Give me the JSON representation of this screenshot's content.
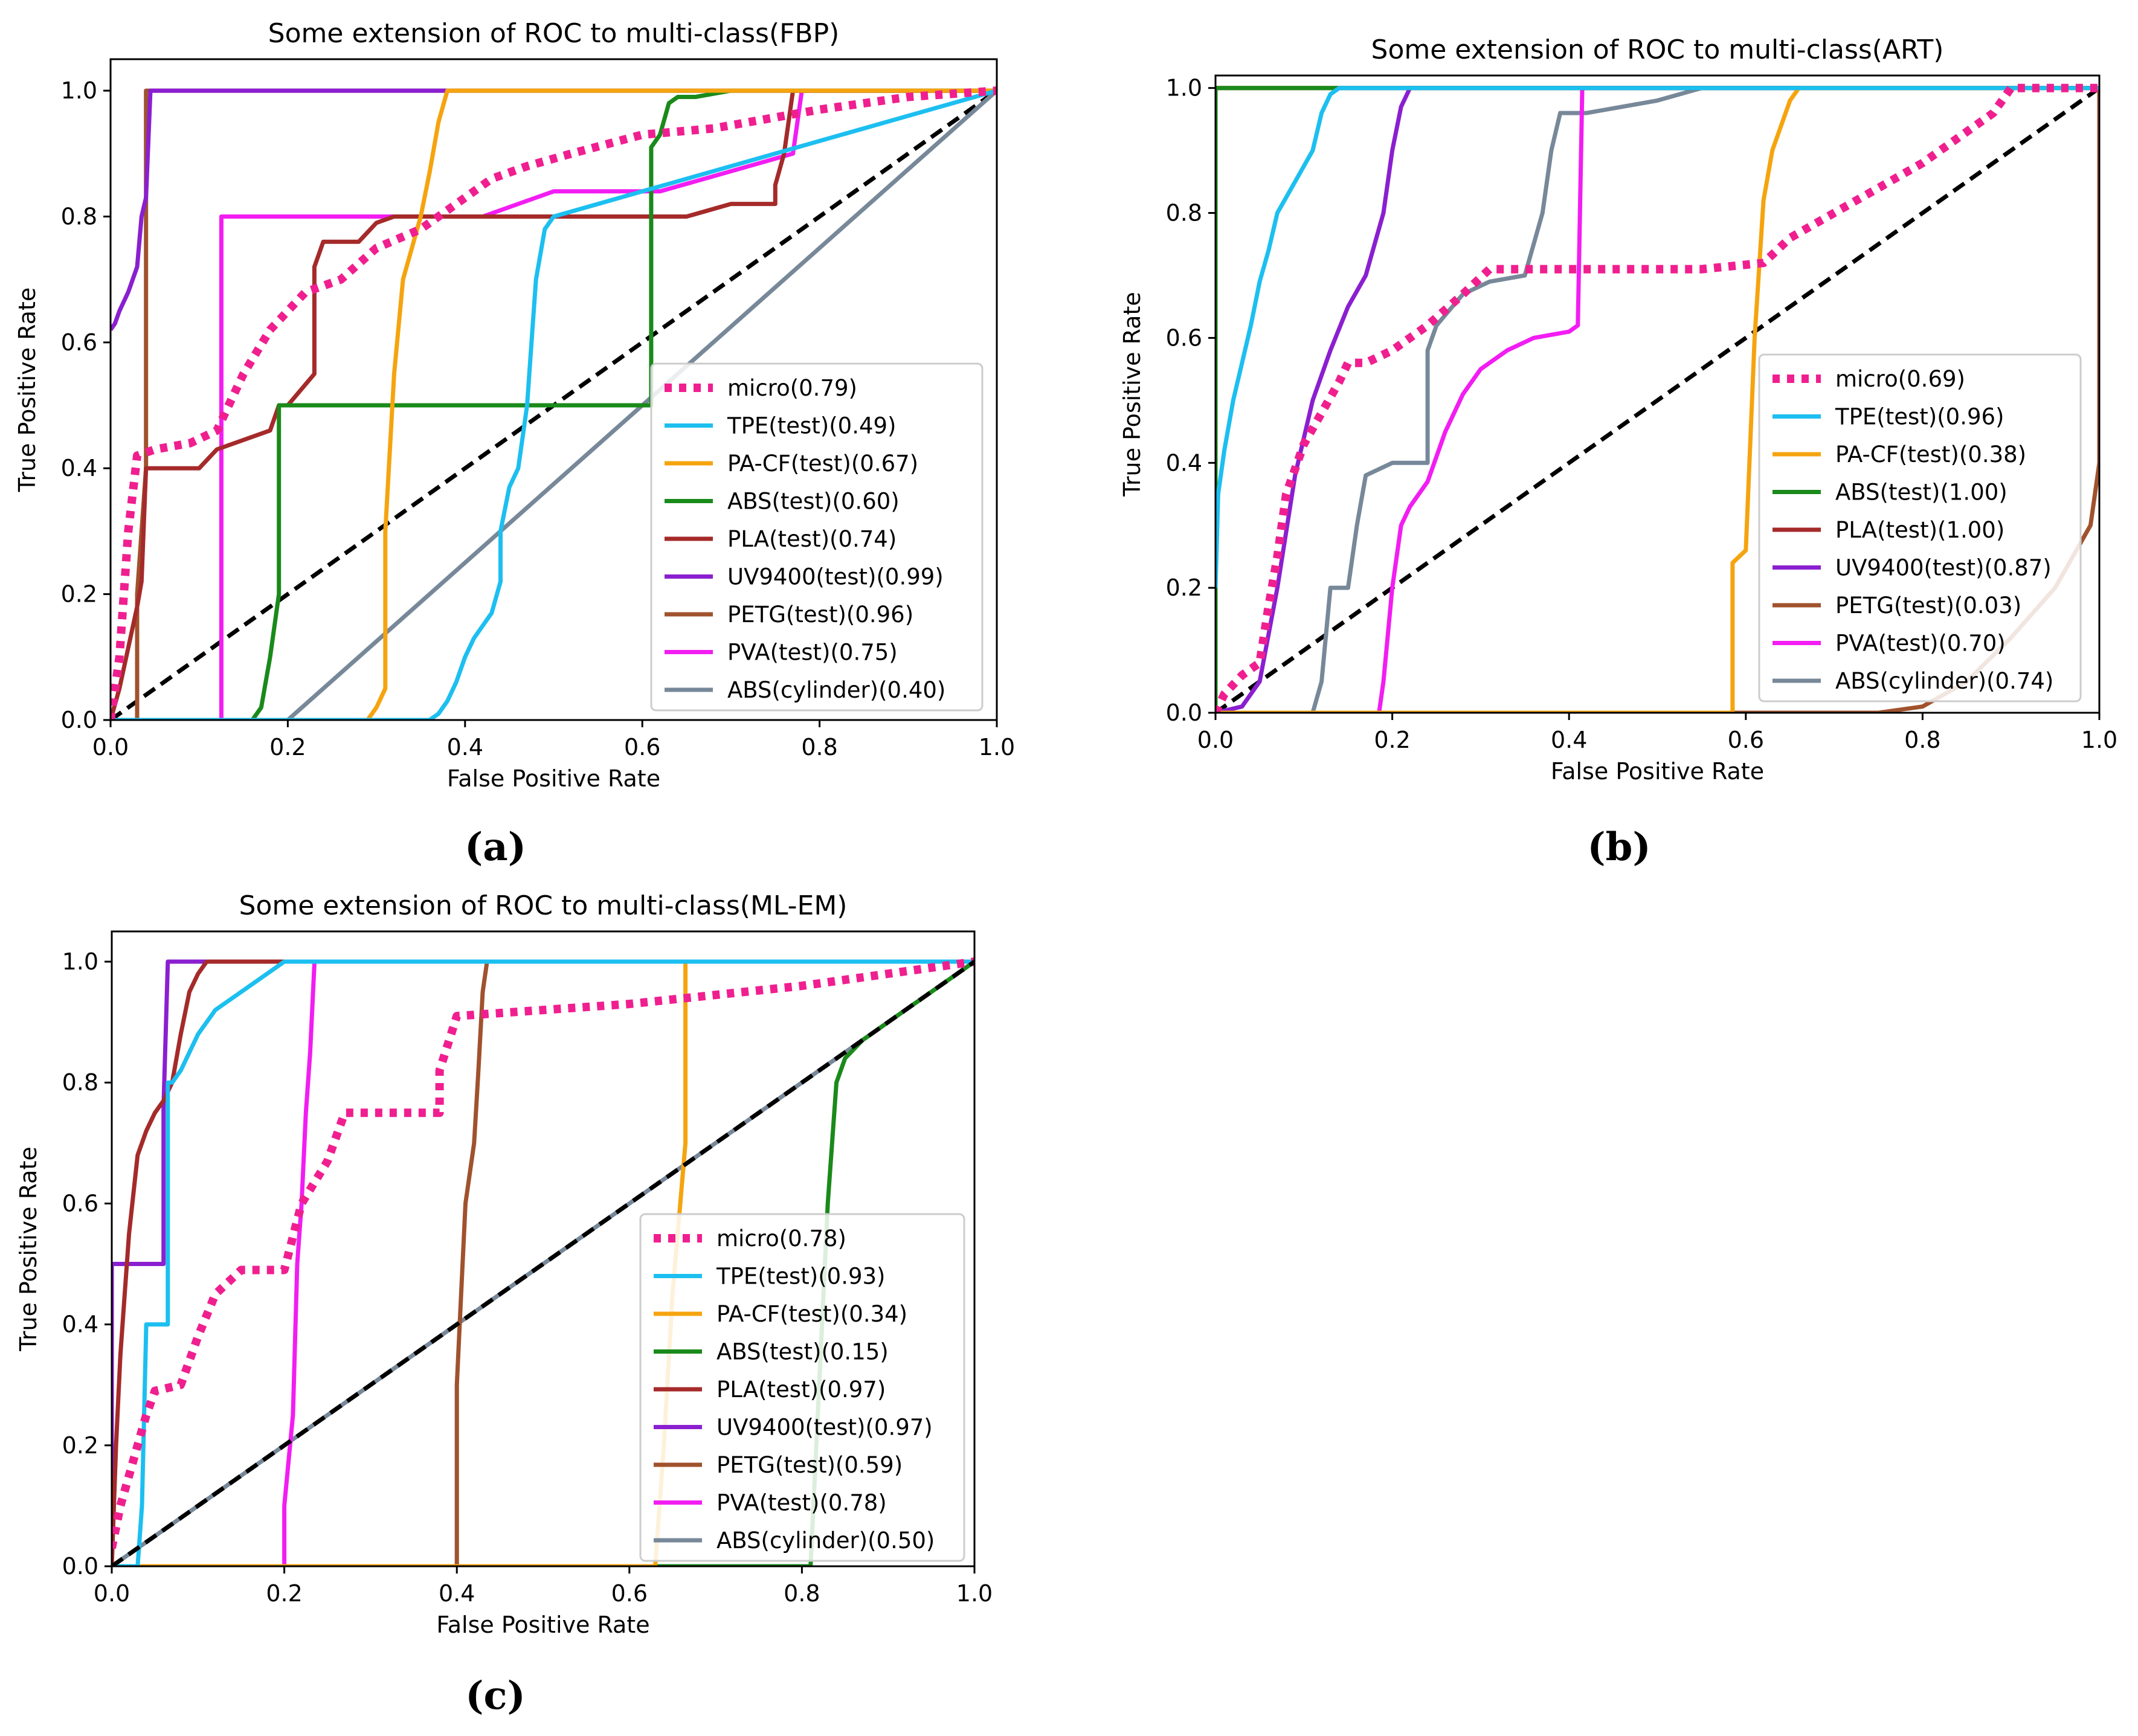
{
  "legend_template": [
    "micro",
    "TPE(test)",
    "PA-CF(test)",
    "ABS(test)",
    "PLA(test)",
    "UV9400(test)",
    "PETG(test)",
    "PVA(test)",
    "ABS(cylinder)"
  ],
  "colors": {
    "micro": "#f01f8f",
    "TPE": "#1cbff0",
    "PACF": "#f5a40f",
    "ABS": "#1a8a1a",
    "PLA": "#a52a2a",
    "UV9400": "#8a1fd0",
    "PETG": "#a0522d",
    "PVA": "#f21df2",
    "ABScyl": "#778899",
    "diag": "#000000"
  },
  "captions": {
    "a": "(a)",
    "b": "(b)",
    "c": "(c)"
  },
  "chart_data": [
    {
      "id": "a",
      "type": "line",
      "title": "Some extension of ROC to multi-class(FBP)",
      "xlabel": "False Positive Rate",
      "ylabel": "True Positive Rate",
      "xlim": [
        0,
        1
      ],
      "ylim": [
        0,
        1.05
      ],
      "xticks": [
        "0.0",
        "0.2",
        "0.4",
        "0.6",
        "0.8",
        "1.0"
      ],
      "yticks": [
        "0.0",
        "0.2",
        "0.4",
        "0.6",
        "0.8",
        "1.0"
      ],
      "legend_position": "center-right",
      "series": [
        {
          "key": "micro",
          "name": "micro(0.79)",
          "dotted": true,
          "x": [
            0,
            0.01,
            0.02,
            0.03,
            0.05,
            0.09,
            0.12,
            0.15,
            0.18,
            0.22,
            0.26,
            0.3,
            0.35,
            0.37,
            0.43,
            0.47,
            0.52,
            0.6,
            0.68,
            0.76,
            0.8,
            0.9,
            1.0
          ],
          "y": [
            0,
            0.1,
            0.3,
            0.42,
            0.43,
            0.44,
            0.46,
            0.55,
            0.62,
            0.68,
            0.7,
            0.75,
            0.78,
            0.8,
            0.86,
            0.88,
            0.9,
            0.93,
            0.94,
            0.96,
            0.97,
            0.99,
            1.0
          ]
        },
        {
          "key": "TPE",
          "name": "TPE(test)(0.49)",
          "x": [
            0,
            0.36,
            0.37,
            0.38,
            0.39,
            0.4,
            0.41,
            0.43,
            0.44,
            0.44,
            0.45,
            0.46,
            0.465,
            0.47,
            0.475,
            0.48,
            0.49,
            0.5,
            0.6,
            0.7,
            0.8,
            0.9,
            1.0
          ],
          "y": [
            0,
            0,
            0.01,
            0.03,
            0.06,
            0.1,
            0.13,
            0.17,
            0.22,
            0.3,
            0.37,
            0.4,
            0.45,
            0.5,
            0.6,
            0.7,
            0.78,
            0.8,
            0.84,
            0.88,
            0.92,
            0.96,
            1.0
          ]
        },
        {
          "key": "PACF",
          "name": "PA-CF(test)(0.67)",
          "x": [
            0,
            0.29,
            0.3,
            0.31,
            0.31,
            0.32,
            0.33,
            0.34,
            0.35,
            0.36,
            0.37,
            0.38,
            1.0
          ],
          "y": [
            0,
            0,
            0.02,
            0.05,
            0.3,
            0.55,
            0.7,
            0.75,
            0.8,
            0.87,
            0.95,
            1.0,
            1.0
          ]
        },
        {
          "key": "ABS",
          "name": "ABS(test)(0.60)",
          "x": [
            0,
            0.16,
            0.17,
            0.18,
            0.19,
            0.19,
            0.61,
            0.61,
            0.62,
            0.63,
            0.64,
            0.66,
            0.7,
            1.0
          ],
          "y": [
            0,
            0,
            0.02,
            0.1,
            0.2,
            0.5,
            0.5,
            0.91,
            0.93,
            0.98,
            0.99,
            0.99,
            1.0,
            1.0
          ]
        },
        {
          "key": "PLA",
          "name": "PLA(test)(0.74)",
          "x": [
            0,
            0.01,
            0.03,
            0.035,
            0.04,
            0.1,
            0.12,
            0.18,
            0.19,
            0.2,
            0.23,
            0.23,
            0.24,
            0.28,
            0.3,
            0.32,
            0.65,
            0.7,
            0.75,
            0.75,
            0.76,
            0.77,
            0.78,
            1.0
          ],
          "y": [
            0,
            0.05,
            0.18,
            0.22,
            0.4,
            0.4,
            0.43,
            0.46,
            0.5,
            0.5,
            0.55,
            0.72,
            0.76,
            0.76,
            0.79,
            0.8,
            0.8,
            0.82,
            0.82,
            0.85,
            0.9,
            1.0,
            1.0,
            1.0
          ]
        },
        {
          "key": "UV9400",
          "name": "UV9400(test)(0.99)",
          "x": [
            0,
            0.005,
            0.01,
            0.02,
            0.03,
            0.035,
            0.04,
            0.045,
            0.05,
            1.0
          ],
          "y": [
            0.62,
            0.63,
            0.65,
            0.68,
            0.72,
            0.8,
            0.83,
            1.0,
            1.0,
            1.0
          ]
        },
        {
          "key": "PETG",
          "name": "PETG(test)(0.96)",
          "x": [
            0,
            0.03,
            0.03,
            0.04,
            0.04,
            1.0
          ],
          "y": [
            0,
            0,
            0.2,
            0.4,
            1.0,
            1.0
          ]
        },
        {
          "key": "PVA",
          "name": "PVA(test)(0.75)",
          "x": [
            0,
            0.125,
            0.125,
            0.35,
            0.42,
            0.5,
            0.62,
            0.77,
            0.78,
            0.79,
            1.0
          ],
          "y": [
            0,
            0,
            0.8,
            0.8,
            0.8,
            0.84,
            0.84,
            0.9,
            1.0,
            1.0,
            1.0
          ]
        },
        {
          "key": "ABScyl",
          "name": "ABS(cylinder)(0.40)",
          "x": [
            0,
            0.2,
            1.0
          ],
          "y": [
            0,
            0,
            1.0
          ]
        }
      ]
    },
    {
      "id": "b",
      "type": "line",
      "title": "Some extension of ROC to multi-class(ART)",
      "xlabel": "False Positive Rate",
      "ylabel": "True Positive Rate",
      "xlim": [
        0,
        1
      ],
      "ylim": [
        0,
        1.02
      ],
      "xticks": [
        "0.0",
        "0.2",
        "0.4",
        "0.6",
        "0.8",
        "1.0"
      ],
      "yticks": [
        "0.0",
        "0.2",
        "0.4",
        "0.6",
        "0.8",
        "1.0"
      ],
      "legend_position": "center-right",
      "series": [
        {
          "key": "micro",
          "name": "micro(0.69)",
          "dotted": true,
          "x": [
            0,
            0.01,
            0.03,
            0.05,
            0.06,
            0.07,
            0.08,
            0.1,
            0.12,
            0.14,
            0.15,
            0.17,
            0.2,
            0.24,
            0.28,
            0.31,
            0.35,
            0.45,
            0.55,
            0.62,
            0.65,
            0.7,
            0.75,
            0.8,
            0.85,
            0.88,
            0.9,
            1.0
          ],
          "y": [
            0,
            0.03,
            0.06,
            0.08,
            0.17,
            0.25,
            0.35,
            0.43,
            0.48,
            0.53,
            0.56,
            0.56,
            0.58,
            0.62,
            0.67,
            0.71,
            0.71,
            0.71,
            0.71,
            0.72,
            0.76,
            0.8,
            0.84,
            0.88,
            0.93,
            0.96,
            1.0,
            1.0
          ]
        },
        {
          "key": "TPE",
          "name": "TPE(test)(0.96)",
          "x": [
            0,
            0.003,
            0.01,
            0.02,
            0.03,
            0.04,
            0.05,
            0.06,
            0.07,
            0.09,
            0.11,
            0.12,
            0.13,
            0.14,
            1.0
          ],
          "y": [
            0.2,
            0.35,
            0.42,
            0.5,
            0.56,
            0.62,
            0.69,
            0.74,
            0.8,
            0.85,
            0.9,
            0.96,
            0.99,
            1.0,
            1.0
          ]
        },
        {
          "key": "PACF",
          "name": "PA-CF(test)(0.38)",
          "x": [
            0,
            0.585,
            0.585,
            0.6,
            0.61,
            0.62,
            0.63,
            0.65,
            0.66,
            1.0
          ],
          "y": [
            0,
            0,
            0.24,
            0.26,
            0.6,
            0.82,
            0.9,
            0.98,
            1.0,
            1.0
          ]
        },
        {
          "key": "ABS",
          "name": "ABS(test)(1.00)",
          "x": [
            0,
            0,
            1.0
          ],
          "y": [
            0,
            1.0,
            1.0
          ]
        },
        {
          "key": "PLA",
          "name": "PLA(test)(1.00)",
          "x": [
            0,
            0,
            1.0
          ],
          "y": [
            0,
            1.0,
            1.0
          ]
        },
        {
          "key": "UV9400",
          "name": "UV9400(test)(0.87)",
          "x": [
            0,
            0.03,
            0.05,
            0.07,
            0.09,
            0.11,
            0.13,
            0.15,
            0.17,
            0.19,
            0.2,
            0.21,
            0.22,
            1.0
          ],
          "y": [
            0,
            0.01,
            0.05,
            0.2,
            0.38,
            0.5,
            0.58,
            0.65,
            0.7,
            0.8,
            0.9,
            0.97,
            1.0,
            1.0
          ]
        },
        {
          "key": "PETG",
          "name": "PETG(test)(0.03)",
          "x": [
            0,
            0.75,
            0.8,
            0.85,
            0.9,
            0.95,
            0.99,
            1.0,
            1.0
          ],
          "y": [
            0,
            0,
            0.01,
            0.05,
            0.12,
            0.2,
            0.3,
            0.4,
            1.0
          ]
        },
        {
          "key": "PVA",
          "name": "PVA(test)(0.70)",
          "x": [
            0,
            0.185,
            0.19,
            0.2,
            0.21,
            0.22,
            0.24,
            0.26,
            0.28,
            0.3,
            0.33,
            0.36,
            0.4,
            0.41,
            0.415,
            0.42,
            0.43,
            1.0
          ],
          "y": [
            0,
            0,
            0.05,
            0.2,
            0.3,
            0.33,
            0.37,
            0.45,
            0.51,
            0.55,
            0.58,
            0.6,
            0.61,
            0.62,
            1.0,
            1.0,
            1.0,
            1.0
          ]
        },
        {
          "key": "ABScyl",
          "name": "ABS(cylinder)(0.74)",
          "x": [
            0,
            0.11,
            0.12,
            0.13,
            0.14,
            0.15,
            0.16,
            0.17,
            0.2,
            0.24,
            0.24,
            0.25,
            0.28,
            0.31,
            0.35,
            0.37,
            0.38,
            0.39,
            0.42,
            0.5,
            0.55,
            0.6,
            0.7,
            1.0
          ],
          "y": [
            0,
            0,
            0.05,
            0.2,
            0.2,
            0.2,
            0.3,
            0.38,
            0.4,
            0.4,
            0.58,
            0.62,
            0.67,
            0.69,
            0.7,
            0.8,
            0.9,
            0.96,
            0.96,
            0.98,
            1.0,
            1.0,
            1.0,
            1.0
          ]
        }
      ]
    },
    {
      "id": "c",
      "type": "line",
      "title": "Some extension of ROC to multi-class(ML-EM)",
      "xlabel": "False Positive Rate",
      "ylabel": "True Positive Rate",
      "xlim": [
        0,
        1
      ],
      "ylim": [
        0,
        1.05
      ],
      "xticks": [
        "0.0",
        "0.2",
        "0.4",
        "0.6",
        "0.8",
        "1.0"
      ],
      "yticks": [
        "0.0",
        "0.2",
        "0.4",
        "0.6",
        "0.8",
        "1.0"
      ],
      "legend_position": "center-right",
      "series": [
        {
          "key": "micro",
          "name": "micro(0.78)",
          "dotted": true,
          "x": [
            0,
            0.01,
            0.02,
            0.03,
            0.04,
            0.05,
            0.08,
            0.1,
            0.12,
            0.15,
            0.2,
            0.22,
            0.25,
            0.27,
            0.38,
            0.38,
            0.4,
            0.6,
            0.8,
            1.0
          ],
          "y": [
            0.03,
            0.1,
            0.15,
            0.2,
            0.25,
            0.29,
            0.3,
            0.38,
            0.45,
            0.49,
            0.49,
            0.6,
            0.67,
            0.75,
            0.75,
            0.82,
            0.91,
            0.93,
            0.96,
            1.0
          ]
        },
        {
          "key": "TPE",
          "name": "TPE(test)(0.93)",
          "x": [
            0,
            0.03,
            0.035,
            0.04,
            0.04,
            0.065,
            0.065,
            0.07,
            0.08,
            0.1,
            0.12,
            0.15,
            0.18,
            0.2,
            0.21,
            1.0
          ],
          "y": [
            0,
            0,
            0.1,
            0.4,
            0.4,
            0.4,
            0.8,
            0.8,
            0.82,
            0.88,
            0.92,
            0.95,
            0.98,
            1.0,
            1.0,
            1.0
          ]
        },
        {
          "key": "PACF",
          "name": "PA-CF(test)(0.34)",
          "x": [
            0,
            0.63,
            0.64,
            0.65,
            0.665,
            0.665,
            1.0
          ],
          "y": [
            0,
            0,
            0.2,
            0.45,
            0.7,
            1.0,
            1.0
          ]
        },
        {
          "key": "ABS",
          "name": "ABS(test)(0.15)",
          "x": [
            0,
            0.81,
            0.82,
            0.83,
            0.84,
            0.85,
            0.87,
            0.9,
            0.93,
            0.96,
            0.98,
            1.0
          ],
          "y": [
            0,
            0,
            0.3,
            0.6,
            0.8,
            0.84,
            0.87,
            0.9,
            0.93,
            0.96,
            0.98,
            1.0
          ]
        },
        {
          "key": "PLA",
          "name": "PLA(test)(0.97)",
          "x": [
            0,
            0.005,
            0.01,
            0.015,
            0.02,
            0.03,
            0.04,
            0.05,
            0.06,
            0.07,
            0.08,
            0.09,
            0.1,
            0.11,
            0.12,
            1.0
          ],
          "y": [
            0,
            0.2,
            0.35,
            0.45,
            0.55,
            0.68,
            0.72,
            0.75,
            0.77,
            0.8,
            0.88,
            0.95,
            0.98,
            1.0,
            1.0,
            1.0
          ]
        },
        {
          "key": "UV9400",
          "name": "UV9400(test)(0.97)",
          "x": [
            0,
            0,
            0.06,
            0.06,
            0.065,
            1.0
          ],
          "y": [
            0,
            0.5,
            0.5,
            0.76,
            1.0,
            1.0
          ]
        },
        {
          "key": "PETG",
          "name": "PETG(test)(0.59)",
          "x": [
            0,
            0.4,
            0.4,
            0.405,
            0.41,
            0.42,
            0.425,
            0.43,
            0.435,
            1.0
          ],
          "y": [
            0,
            0,
            0.3,
            0.45,
            0.6,
            0.7,
            0.82,
            0.95,
            1.0,
            1.0
          ]
        },
        {
          "key": "PVA",
          "name": "PVA(test)(0.78)",
          "x": [
            0,
            0.2,
            0.2,
            0.21,
            0.215,
            0.22,
            0.225,
            0.23,
            0.235,
            1.0
          ],
          "y": [
            0,
            0,
            0.1,
            0.25,
            0.5,
            0.6,
            0.75,
            0.85,
            1.0,
            1.0
          ]
        },
        {
          "key": "ABScyl",
          "name": "ABS(cylinder)(0.50)",
          "x": [
            0,
            1.0
          ],
          "y": [
            0,
            1.0
          ]
        }
      ]
    }
  ]
}
